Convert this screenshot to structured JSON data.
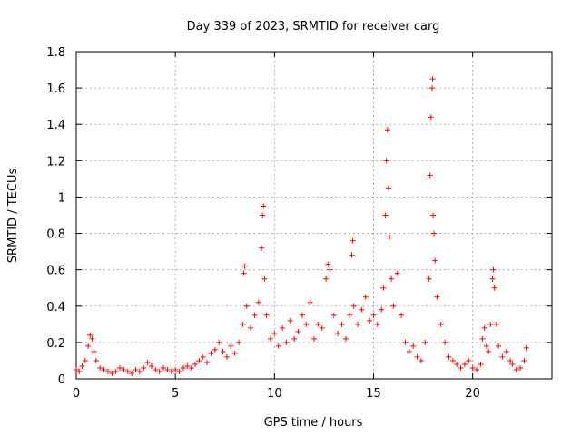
{
  "chart_data": {
    "type": "scatter",
    "title": "Day 339 of 2023, SRMTID for receiver carg",
    "xlabel": "GPS time / hours",
    "ylabel": "SRMTID / TECUs",
    "xlim": [
      0,
      24
    ],
    "ylim": [
      0,
      1.8
    ],
    "xticks": [
      0,
      5,
      10,
      15,
      20
    ],
    "yticks": [
      0,
      0.2,
      0.4,
      0.6,
      0.8,
      1,
      1.2,
      1.4,
      1.6,
      1.8
    ],
    "xtick_labels": [
      "0",
      "5",
      "10",
      "15",
      "20"
    ],
    "ytick_labels": [
      "0",
      "0.2",
      "0.4",
      "0.6",
      "0.8",
      "1",
      "1.2",
      "1.4",
      "1.6",
      "1.8"
    ],
    "grid": true,
    "marker": "plus",
    "marker_color": "#ff0000",
    "series": [
      {
        "name": "SRMTID",
        "points": [
          [
            0.0,
            0.05
          ],
          [
            0.15,
            0.04
          ],
          [
            0.3,
            0.07
          ],
          [
            0.45,
            0.1
          ],
          [
            0.6,
            0.18
          ],
          [
            0.7,
            0.24
          ],
          [
            0.8,
            0.22
          ],
          [
            0.9,
            0.15
          ],
          [
            1.0,
            0.1
          ],
          [
            1.2,
            0.06
          ],
          [
            1.4,
            0.05
          ],
          [
            1.6,
            0.04
          ],
          [
            1.8,
            0.03
          ],
          [
            2.0,
            0.04
          ],
          [
            2.2,
            0.06
          ],
          [
            2.4,
            0.05
          ],
          [
            2.6,
            0.04
          ],
          [
            2.8,
            0.03
          ],
          [
            3.0,
            0.05
          ],
          [
            3.2,
            0.04
          ],
          [
            3.4,
            0.06
          ],
          [
            3.6,
            0.09
          ],
          [
            3.8,
            0.07
          ],
          [
            4.0,
            0.05
          ],
          [
            4.2,
            0.04
          ],
          [
            4.4,
            0.06
          ],
          [
            4.6,
            0.05
          ],
          [
            4.8,
            0.04
          ],
          [
            5.0,
            0.05
          ],
          [
            5.2,
            0.04
          ],
          [
            5.4,
            0.06
          ],
          [
            5.6,
            0.07
          ],
          [
            5.8,
            0.06
          ],
          [
            6.0,
            0.08
          ],
          [
            6.2,
            0.1
          ],
          [
            6.4,
            0.12
          ],
          [
            6.6,
            0.09
          ],
          [
            6.8,
            0.14
          ],
          [
            7.0,
            0.16
          ],
          [
            7.2,
            0.2
          ],
          [
            7.4,
            0.15
          ],
          [
            7.6,
            0.12
          ],
          [
            7.8,
            0.18
          ],
          [
            8.0,
            0.14
          ],
          [
            8.2,
            0.2
          ],
          [
            8.4,
            0.3
          ],
          [
            8.45,
            0.58
          ],
          [
            8.5,
            0.62
          ],
          [
            8.6,
            0.4
          ],
          [
            8.8,
            0.28
          ],
          [
            9.0,
            0.35
          ],
          [
            9.2,
            0.42
          ],
          [
            9.35,
            0.72
          ],
          [
            9.4,
            0.9
          ],
          [
            9.45,
            0.95
          ],
          [
            9.5,
            0.55
          ],
          [
            9.6,
            0.35
          ],
          [
            9.8,
            0.22
          ],
          [
            10.0,
            0.25
          ],
          [
            10.2,
            0.18
          ],
          [
            10.4,
            0.28
          ],
          [
            10.6,
            0.2
          ],
          [
            10.8,
            0.32
          ],
          [
            11.0,
            0.22
          ],
          [
            11.2,
            0.26
          ],
          [
            11.4,
            0.35
          ],
          [
            11.6,
            0.3
          ],
          [
            11.8,
            0.42
          ],
          [
            12.0,
            0.22
          ],
          [
            12.2,
            0.3
          ],
          [
            12.4,
            0.28
          ],
          [
            12.6,
            0.55
          ],
          [
            12.7,
            0.63
          ],
          [
            12.8,
            0.6
          ],
          [
            13.0,
            0.35
          ],
          [
            13.2,
            0.25
          ],
          [
            13.4,
            0.3
          ],
          [
            13.6,
            0.22
          ],
          [
            13.8,
            0.35
          ],
          [
            13.9,
            0.68
          ],
          [
            13.95,
            0.76
          ],
          [
            14.0,
            0.4
          ],
          [
            14.2,
            0.3
          ],
          [
            14.4,
            0.38
          ],
          [
            14.6,
            0.45
          ],
          [
            14.8,
            0.32
          ],
          [
            15.0,
            0.35
          ],
          [
            15.2,
            0.3
          ],
          [
            15.4,
            0.38
          ],
          [
            15.5,
            0.5
          ],
          [
            15.6,
            0.9
          ],
          [
            15.65,
            1.2
          ],
          [
            15.7,
            1.37
          ],
          [
            15.75,
            1.05
          ],
          [
            15.8,
            0.78
          ],
          [
            15.9,
            0.55
          ],
          [
            16.0,
            0.4
          ],
          [
            16.2,
            0.58
          ],
          [
            16.4,
            0.35
          ],
          [
            16.6,
            0.2
          ],
          [
            16.8,
            0.15
          ],
          [
            17.0,
            0.18
          ],
          [
            17.2,
            0.12
          ],
          [
            17.4,
            0.1
          ],
          [
            17.6,
            0.2
          ],
          [
            17.8,
            0.55
          ],
          [
            17.85,
            1.12
          ],
          [
            17.9,
            1.44
          ],
          [
            17.95,
            1.6
          ],
          [
            17.98,
            1.65
          ],
          [
            18.0,
            0.9
          ],
          [
            18.05,
            0.8
          ],
          [
            18.1,
            0.65
          ],
          [
            18.2,
            0.45
          ],
          [
            18.4,
            0.3
          ],
          [
            18.6,
            0.2
          ],
          [
            18.8,
            0.12
          ],
          [
            19.0,
            0.1
          ],
          [
            19.2,
            0.08
          ],
          [
            19.4,
            0.06
          ],
          [
            19.6,
            0.08
          ],
          [
            19.8,
            0.1
          ],
          [
            20.0,
            0.06
          ],
          [
            20.2,
            0.05
          ],
          [
            20.4,
            0.08
          ],
          [
            20.5,
            0.22
          ],
          [
            20.6,
            0.28
          ],
          [
            20.7,
            0.18
          ],
          [
            20.8,
            0.15
          ],
          [
            20.9,
            0.3
          ],
          [
            21.0,
            0.55
          ],
          [
            21.05,
            0.6
          ],
          [
            21.1,
            0.5
          ],
          [
            21.2,
            0.3
          ],
          [
            21.3,
            0.18
          ],
          [
            21.5,
            0.12
          ],
          [
            21.7,
            0.15
          ],
          [
            21.9,
            0.1
          ],
          [
            22.0,
            0.08
          ],
          [
            22.2,
            0.05
          ],
          [
            22.4,
            0.06
          ],
          [
            22.6,
            0.1
          ],
          [
            22.7,
            0.17
          ]
        ]
      }
    ]
  }
}
